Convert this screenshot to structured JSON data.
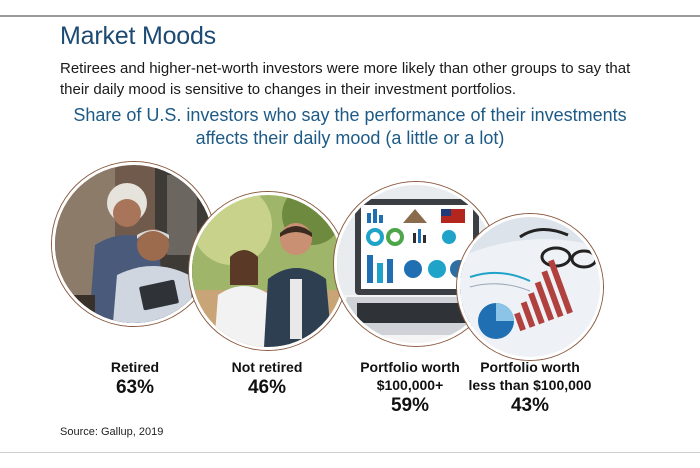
{
  "header": {
    "title": "Market Moods",
    "intro": "Retirees and higher-net-worth investors were more likely than other groups to say that their daily mood is sensitive to changes in their investment portfolios.",
    "subtitle": "Share of U.S. investors who say the performance of their investments affects their daily mood (a little or a lot)"
  },
  "chart_data": {
    "type": "table",
    "title": "Share of U.S. investors who say the performance of their investments affects their daily mood (a little or a lot)",
    "categories": [
      "Retired",
      "Not retired",
      "Portfolio worth $100,000+",
      "Portfolio worth less than $100,000"
    ],
    "values": [
      63,
      46,
      59,
      43
    ],
    "unit": "%",
    "items": [
      {
        "label_lines": [
          "Retired"
        ],
        "value": "63%"
      },
      {
        "label_lines": [
          "Not retired"
        ],
        "value": "46%"
      },
      {
        "label_lines": [
          "Portfolio worth",
          "$100,000+"
        ],
        "value": "59%"
      },
      {
        "label_lines": [
          "Portfolio worth",
          "less than $100,000"
        ],
        "value": "43%"
      }
    ]
  },
  "footer": {
    "source": "Source: Gallup, 2019"
  },
  "colors": {
    "title": "#1d4a72",
    "subtitle": "#1d5a86",
    "circle_ring": "#8a5a40"
  }
}
